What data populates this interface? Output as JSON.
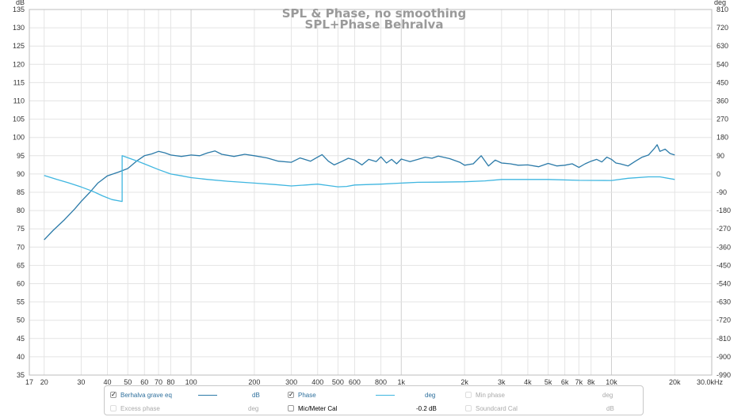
{
  "chart_data": {
    "type": "line",
    "title": "SPL & Phase, no smoothing",
    "subtitle": "SPL+Phase Behralva",
    "xscale": "log",
    "xlim": [
      17,
      30000
    ],
    "ylim": [
      35,
      135
    ],
    "y2lim": [
      -990,
      810
    ],
    "yunit": "dB",
    "y2unit": "deg",
    "xunit": "kHz",
    "x_ticks": [
      {
        "v": 17,
        "label": "17"
      },
      {
        "v": 20,
        "label": "20"
      },
      {
        "v": 30,
        "label": "30"
      },
      {
        "v": 40,
        "label": "40"
      },
      {
        "v": 50,
        "label": "50"
      },
      {
        "v": 60,
        "label": "60"
      },
      {
        "v": 70,
        "label": "70"
      },
      {
        "v": 80,
        "label": "80"
      },
      {
        "v": 100,
        "label": "100"
      },
      {
        "v": 200,
        "label": "200"
      },
      {
        "v": 300,
        "label": "300"
      },
      {
        "v": 400,
        "label": "400"
      },
      {
        "v": 500,
        "label": "500"
      },
      {
        "v": 600,
        "label": "600"
      },
      {
        "v": 800,
        "label": "800"
      },
      {
        "v": 1000,
        "label": "1k"
      },
      {
        "v": 2000,
        "label": "2k"
      },
      {
        "v": 3000,
        "label": "3k"
      },
      {
        "v": 4000,
        "label": "4k"
      },
      {
        "v": 5000,
        "label": "5k"
      },
      {
        "v": 6000,
        "label": "6k"
      },
      {
        "v": 7000,
        "label": "7k"
      },
      {
        "v": 8000,
        "label": "8k"
      },
      {
        "v": 10000,
        "label": "10k"
      },
      {
        "v": 20000,
        "label": "20k"
      },
      {
        "v": 30000,
        "label": "30.0kHz"
      }
    ],
    "y_ticks": [
      135,
      130,
      125,
      120,
      115,
      110,
      105,
      100,
      95,
      90,
      85,
      80,
      75,
      70,
      65,
      60,
      55,
      50,
      45,
      40,
      35
    ],
    "y2_ticks": [
      810,
      720,
      630,
      540,
      450,
      360,
      270,
      180,
      90,
      0,
      -90,
      -180,
      -270,
      -360,
      -450,
      -540,
      -630,
      -720,
      -810,
      -900,
      -990
    ],
    "grid": true,
    "series": [
      {
        "name": "Berhalva grave eq",
        "axis": "dB",
        "color": "#2b7aa8",
        "x": [
          20,
          22,
          25,
          28,
          30,
          33,
          36,
          40,
          45,
          50,
          55,
          60,
          65,
          70,
          75,
          80,
          90,
          100,
          110,
          120,
          130,
          140,
          160,
          180,
          200,
          230,
          260,
          300,
          330,
          370,
          400,
          420,
          450,
          480,
          520,
          560,
          600,
          650,
          700,
          760,
          800,
          850,
          900,
          950,
          1000,
          1100,
          1200,
          1300,
          1400,
          1500,
          1700,
          1900,
          2000,
          2200,
          2400,
          2600,
          2800,
          3000,
          3300,
          3600,
          4000,
          4500,
          5000,
          5500,
          6000,
          6500,
          7000,
          7500,
          8000,
          8500,
          9000,
          9500,
          10000,
          10500,
          11000,
          12000,
          13000,
          14000,
          15000,
          16000,
          16500,
          17000,
          18000,
          19000,
          20000
        ],
        "y": [
          72,
          74.5,
          77.5,
          80.5,
          82.5,
          85,
          87.5,
          89.5,
          90.5,
          91.5,
          93.5,
          95,
          95.5,
          96.2,
          95.8,
          95.2,
          94.8,
          95.2,
          95.0,
          95.8,
          96.3,
          95.4,
          94.8,
          95.4,
          95.0,
          94.4,
          93.5,
          93.2,
          94.4,
          93.5,
          94.6,
          95.3,
          93.5,
          92.5,
          93.4,
          94.3,
          93.8,
          92.5,
          94.0,
          93.4,
          94.7,
          93.0,
          94.0,
          92.8,
          94.1,
          93.4,
          94.0,
          94.6,
          94.3,
          94.9,
          94.2,
          93.2,
          92.4,
          92.8,
          95.0,
          92.2,
          93.8,
          93.0,
          92.8,
          92.4,
          92.5,
          92.0,
          92.9,
          92.2,
          92.4,
          92.8,
          91.8,
          92.8,
          93.5,
          94.0,
          93.3,
          94.6,
          94.0,
          93.0,
          92.8,
          92.2,
          93.5,
          94.6,
          95.2,
          97.0,
          98.0,
          96.2,
          96.8,
          95.6,
          95.2
        ]
      },
      {
        "name": "Phase",
        "axis": "deg",
        "color": "#3fb6e0",
        "x": [
          20,
          23,
          26,
          30,
          34,
          38,
          42,
          47,
          47.01,
          55,
          60,
          70,
          80,
          90,
          100,
          120,
          150,
          200,
          250,
          300,
          350,
          400,
          450,
          500,
          550,
          600,
          700,
          800,
          1000,
          1200,
          1500,
          2000,
          2500,
          3000,
          4000,
          5000,
          7000,
          10000,
          12000,
          15000,
          17000,
          20000
        ],
        "y": [
          -7,
          -27,
          -43,
          -64,
          -85,
          -108,
          -126,
          -135,
          90,
          65,
          50,
          22,
          0,
          -9,
          -18,
          -27,
          -36,
          -45,
          -52,
          -59,
          -54,
          -50,
          -57,
          -63,
          -61,
          -54,
          -52,
          -50,
          -45,
          -41,
          -40,
          -38,
          -34,
          -27,
          -27,
          -27,
          -31,
          -32,
          -21,
          -14,
          -14,
          -27
        ]
      }
    ],
    "legend": {
      "rows": [
        [
          {
            "label": "Berhalva grave eq",
            "checked": true,
            "line": true,
            "unit": "dB",
            "state": "on"
          },
          {
            "label": "Phase",
            "checked": true,
            "line": true,
            "unit": "deg",
            "state": "on"
          },
          {
            "label": "Min phase",
            "checked": false,
            "line": false,
            "unit": "deg",
            "state": "off"
          }
        ],
        [
          {
            "label": "Excess phase",
            "checked": false,
            "line": false,
            "unit": "deg",
            "state": "off"
          },
          {
            "label": "Mic/Meter Cal",
            "checked": false,
            "line": false,
            "unit": "-0.2 dB",
            "state": "dark"
          },
          {
            "label": "Soundcard Cal",
            "checked": false,
            "line": false,
            "unit": "dB",
            "state": "off"
          }
        ]
      ]
    }
  }
}
